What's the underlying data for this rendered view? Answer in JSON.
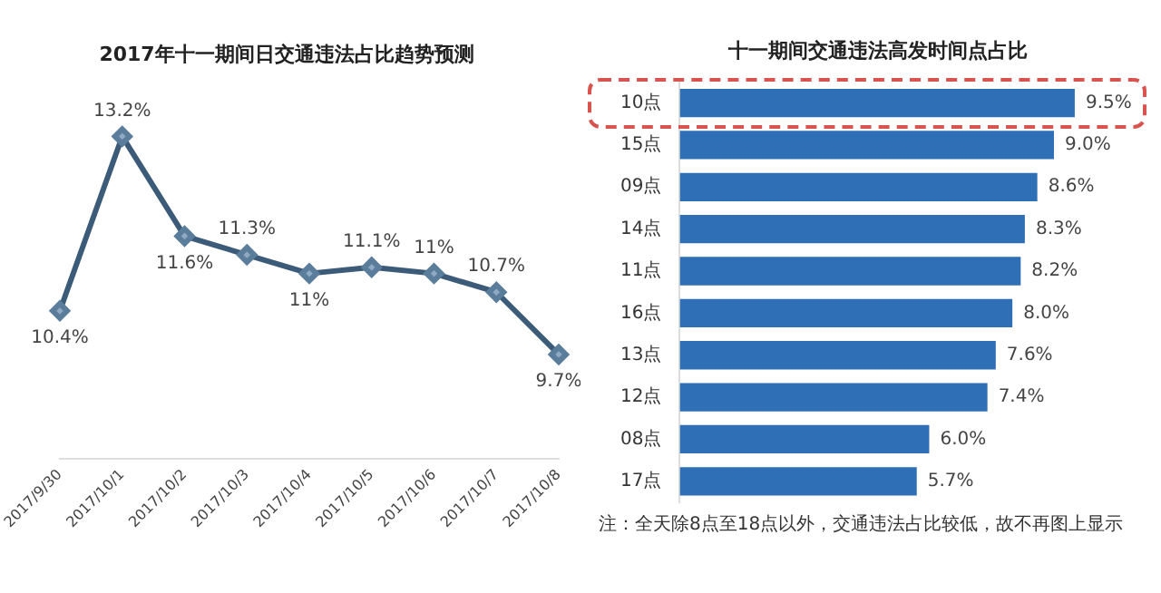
{
  "chart_data": [
    {
      "type": "line",
      "title": "2017年十一期间日交通违法占比趋势预测",
      "categories": [
        "2017/9/30",
        "2017/10/1",
        "2017/10/2",
        "2017/10/3",
        "2017/10/4",
        "2017/10/5",
        "2017/10/6",
        "2017/10/7",
        "2017/10/8"
      ],
      "values": [
        10.4,
        13.2,
        11.6,
        11.3,
        11,
        11.1,
        11,
        10.7,
        9.7
      ],
      "value_labels": [
        "10.4%",
        "13.2%",
        "11.6%",
        "11.3%",
        "11%",
        "11.1%",
        "11%",
        "10.7%",
        "9.7%"
      ],
      "color": "#3b5b78",
      "marker": "diamond",
      "grid": false,
      "legend": false,
      "tick_labels": "x"
    },
    {
      "type": "bar",
      "orientation": "horizontal",
      "title": "十一期间交通违法高发时间点占比",
      "categories": [
        "10点",
        "15点",
        "09点",
        "14点",
        "11点",
        "16点",
        "13点",
        "12点",
        "08点",
        "17点"
      ],
      "values": [
        9.5,
        9.0,
        8.6,
        8.3,
        8.2,
        8.0,
        7.6,
        7.4,
        6.0,
        5.7
      ],
      "value_labels": [
        "9.5%",
        "9.0%",
        "8.6%",
        "8.3%",
        "8.2%",
        "8.0%",
        "7.6%",
        "7.4%",
        "6.0%",
        "5.7%"
      ],
      "color": "#2e6fb5",
      "grid": false,
      "legend": false,
      "tick_labels": "y",
      "annotations": [
        "注：全天除8点至18点以外，交通违法占比较低，故不再图上显示"
      ]
    }
  ]
}
